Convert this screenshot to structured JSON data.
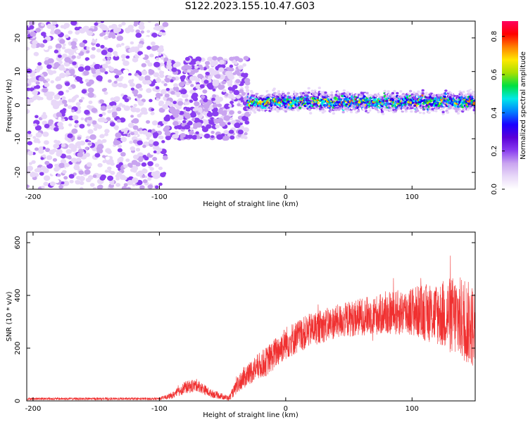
{
  "title": "S122.2023.155.10.47.G03",
  "chart_data": [
    {
      "type": "heatmap",
      "title": "",
      "xlabel": "Height of straight line (km)",
      "ylabel": "Frequency (Hz)",
      "xlim": [
        -205,
        150
      ],
      "ylim": [
        -25,
        25
      ],
      "xticks": [
        -200,
        -100,
        0,
        100
      ],
      "yticks": [
        -20,
        -10,
        0,
        10,
        20
      ],
      "colorbar": {
        "label": "Normalized spectral amplitude",
        "range": [
          0.0,
          0.88
        ],
        "ticks": [
          0.0,
          0.2,
          0.4,
          0.6,
          0.8
        ],
        "colormap": [
          "#ffffff",
          "#e8d8f8",
          "#c9a4f0",
          "#8a3df0",
          "#5a00d8",
          "#1a00ff",
          "#0080ff",
          "#00e8e8",
          "#00e040",
          "#a8e000",
          "#ffe800",
          "#ff8000",
          "#ff0000",
          "#ff0060"
        ]
      },
      "features": [
        {
          "name": "noise",
          "x_range": [
            -205,
            -95
          ],
          "freq_range": [
            -25,
            25
          ],
          "level": 0.08
        },
        {
          "name": "transition",
          "x_range": [
            -95,
            -30
          ],
          "freq_range": [
            -10,
            14
          ],
          "level": 0.15
        },
        {
          "name": "signal",
          "x_range": [
            -30,
            150
          ],
          "freq": 1.0,
          "level": 0.6
        }
      ]
    },
    {
      "type": "line",
      "title": "",
      "xlabel": "Height of straight line (km)",
      "ylabel": "SNR (10 * v/v)",
      "xlim": [
        -205,
        150
      ],
      "ylim": [
        0,
        640
      ],
      "xticks": [
        -200,
        -100,
        0,
        100
      ],
      "yticks": [
        0,
        200,
        400,
        600
      ],
      "color": "#f03030",
      "envelope": {
        "x": [
          -205,
          -100,
          -90,
          -80,
          -70,
          -60,
          -45,
          -35,
          -25,
          -15,
          0,
          20,
          40,
          60,
          80,
          100,
          120,
          135,
          150
        ],
        "mean": [
          8,
          8,
          20,
          50,
          60,
          30,
          10,
          80,
          120,
          150,
          220,
          270,
          300,
          320,
          330,
          340,
          330,
          320,
          280
        ],
        "spread": [
          6,
          6,
          15,
          30,
          30,
          20,
          12,
          50,
          60,
          70,
          80,
          80,
          80,
          90,
          100,
          120,
          150,
          200,
          200
        ]
      }
    }
  ]
}
